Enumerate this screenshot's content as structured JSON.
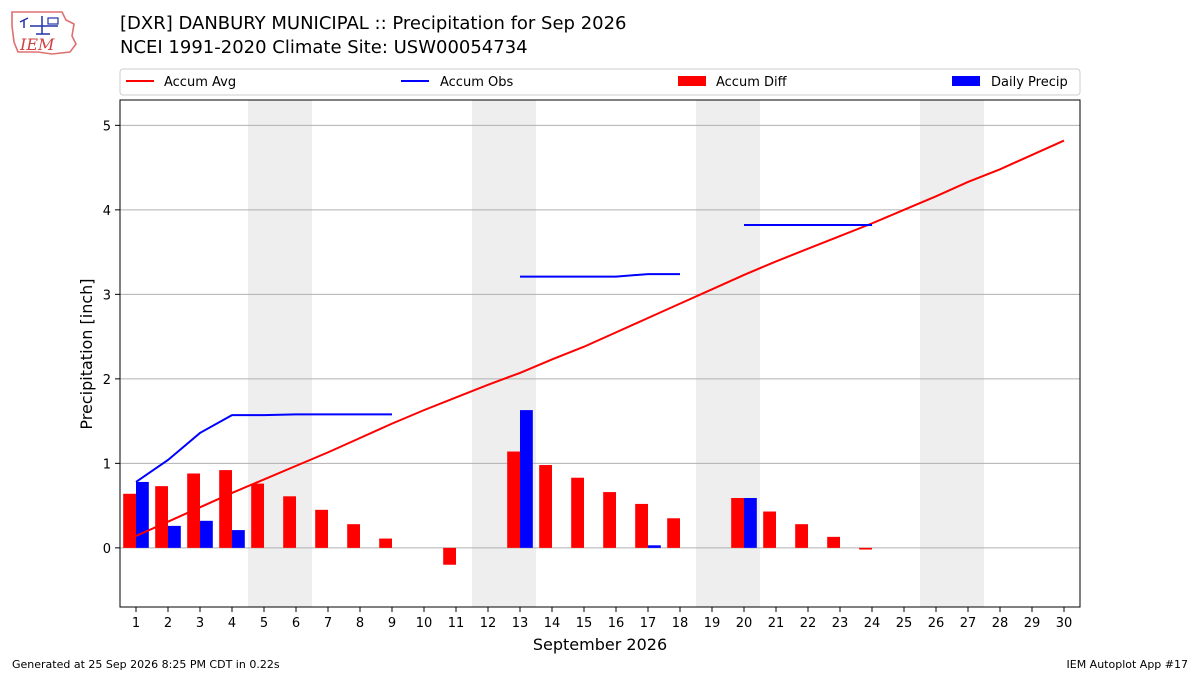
{
  "header": {
    "title_line1": "[DXR] DANBURY MUNICIPAL :: Precipitation for Sep 2026",
    "title_line2": "NCEI 1991-2020 Climate Site: USW00054734",
    "logo_text": "IEM"
  },
  "footer": {
    "left": "Generated at 25 Sep 2026 8:25 PM CDT in 0.22s",
    "right": "IEM Autoplot App #17"
  },
  "colors": {
    "avg": "#ff0000",
    "obs": "#0000ff",
    "diff": "#ff0000",
    "daily": "#0000ff",
    "weekend_band": "#eeeeee",
    "grid": "#b0b0b0"
  },
  "chart_data": {
    "type": "bar",
    "xlabel": "September 2026",
    "ylabel": "Precipitation [inch]",
    "xlim": [
      0.5,
      30.5
    ],
    "ylim": [
      -0.7,
      5.3
    ],
    "yticks": [
      0,
      1,
      2,
      3,
      4,
      5
    ],
    "xticks": [
      1,
      2,
      3,
      4,
      5,
      6,
      7,
      8,
      9,
      10,
      11,
      12,
      13,
      14,
      15,
      16,
      17,
      18,
      19,
      20,
      21,
      22,
      23,
      24,
      25,
      26,
      27,
      28,
      29,
      30
    ],
    "grid": "horizontal",
    "legend_placement": "top",
    "legend": [
      "Accum Avg",
      "Accum Obs",
      "Accum Diff",
      "Daily Precip"
    ],
    "shaded_days": [
      [
        5,
        6
      ],
      [
        12,
        13
      ],
      [
        19,
        20
      ],
      [
        26,
        27
      ]
    ],
    "days": [
      1,
      2,
      3,
      4,
      5,
      6,
      7,
      8,
      9,
      10,
      11,
      12,
      13,
      14,
      15,
      16,
      17,
      18,
      19,
      20,
      21,
      22,
      23,
      24,
      25,
      26,
      27,
      28,
      29,
      30
    ],
    "accum_avg": [
      0.14,
      0.31,
      0.48,
      0.65,
      0.81,
      0.97,
      1.13,
      1.3,
      1.47,
      1.63,
      1.78,
      1.93,
      2.07,
      2.23,
      2.38,
      2.55,
      2.72,
      2.89,
      3.06,
      3.23,
      3.39,
      3.54,
      3.69,
      3.84,
      4.0,
      4.16,
      4.33,
      4.48,
      4.65,
      4.82
    ],
    "accum_obs": [
      0.78,
      1.04,
      1.36,
      1.57,
      1.57,
      1.58,
      1.58,
      1.58,
      1.58,
      null,
      null,
      null,
      3.21,
      3.21,
      3.21,
      3.21,
      3.24,
      3.24,
      null,
      3.82,
      3.82,
      3.82,
      3.82,
      3.82,
      null,
      null,
      null,
      null,
      null,
      null
    ],
    "accum_diff": [
      0.64,
      0.73,
      0.88,
      0.92,
      0.76,
      0.61,
      0.45,
      0.28,
      0.11,
      null,
      -0.2,
      null,
      1.14,
      0.98,
      0.83,
      0.66,
      0.52,
      0.35,
      null,
      0.59,
      0.43,
      0.28,
      0.13,
      -0.02,
      null,
      null,
      null,
      null,
      null,
      null
    ],
    "daily_precip": [
      0.78,
      0.26,
      0.32,
      0.21,
      0,
      0,
      0,
      0,
      0,
      0,
      0,
      0,
      1.63,
      0,
      0,
      0,
      0.03,
      0,
      0,
      0.59,
      0,
      0,
      0,
      0,
      0,
      0,
      0,
      0,
      0,
      0
    ]
  }
}
